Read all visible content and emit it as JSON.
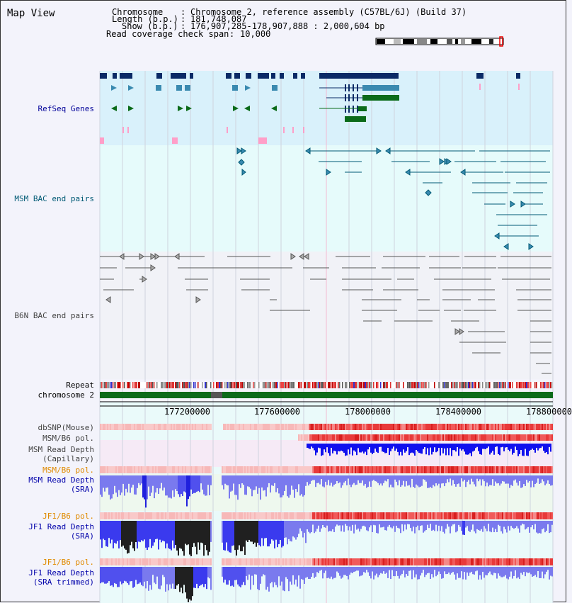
{
  "title": "Map View",
  "header": {
    "chromosome_label": "Chromosome",
    "chromosome_value": "Chromosome 2, reference assembly (C57BL/6J) (Build 37)",
    "length_label": "Length (b.p.)",
    "length_value": "181,748,087",
    "show_label": "Show (b.p.)",
    "show_value": "176,907,285-178,907,888 : 2,000,604 bp",
    "coverage_label": "Read coverage check span",
    "coverage_value": "10,000"
  },
  "tracks": {
    "refseq": "RefSeq Genes",
    "msm_bac": "MSM BAC end pairs",
    "b6n_bac": "B6N BAC end pairs",
    "repeat": "Repeat",
    "chromosome": "chromosome 2",
    "dbsnp": "dbSNP(Mouse)",
    "msm_b6_pol_1": "MSM/B6 pol.",
    "msm_read_depth_cap_1": "MSM Read Depth",
    "msm_read_depth_cap_2": "(Capillary)",
    "msm_b6_pol_2": "MSM/B6 pol.",
    "msm_read_depth_sra_1": "MSM Read Depth",
    "msm_read_depth_sra_2": "(SRA)",
    "jf1_b6_pol_1": "JF1/B6 pol.",
    "jf1_read_depth_1": "JF1 Read Depth",
    "jf1_read_depth_2": "(SRA)",
    "jf1_b6_pol_2": "JF1/B6 pol.",
    "jf1_read_depth_tr_1": "JF1 Read Depth",
    "jf1_read_depth_tr_2": "(SRA trimmed)"
  },
  "axis": {
    "ticks": [
      "177200000",
      "177600000",
      "178000000",
      "178400000",
      "178800000"
    ]
  },
  "colors": {
    "refseq_bg": "#d9f1fb",
    "msm_bg": "#e6fbfb",
    "b6n_bg": "#f1f2f7",
    "navy": "#0a2a66",
    "teal": "#3a8ab0",
    "green": "#0b6b1a",
    "pink": "#ff9fc8"
  }
}
